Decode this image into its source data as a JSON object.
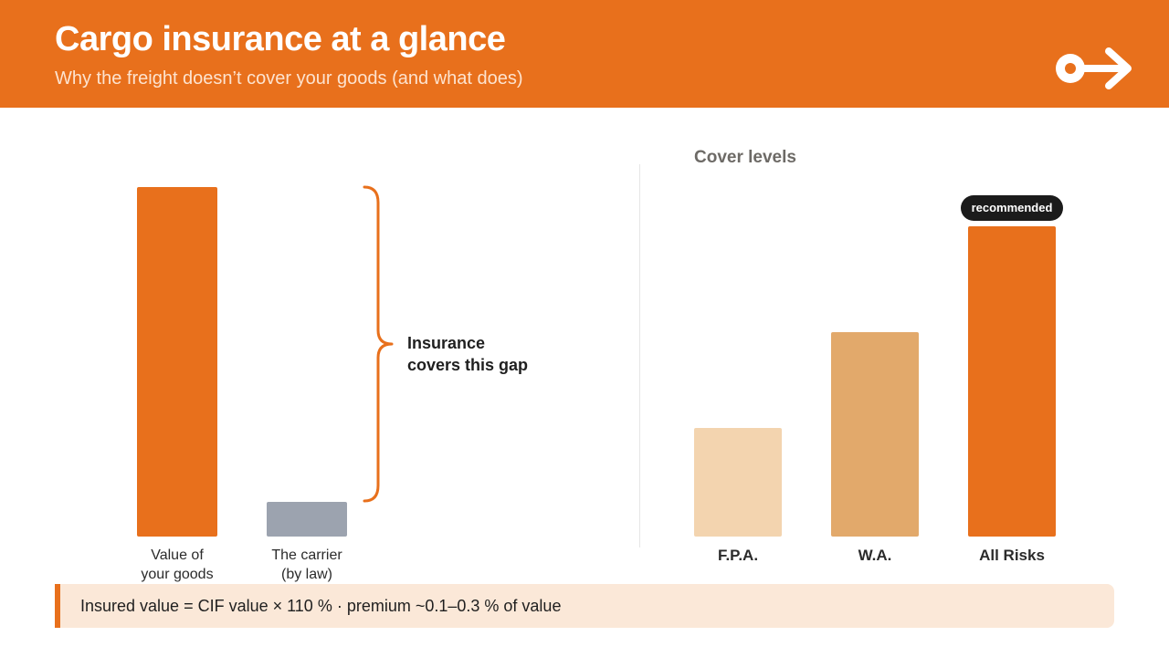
{
  "header": {
    "title": "Cargo insurance at a glance",
    "subtitle": "Why the freight doesn’t cover your goods (and what does)",
    "logo_icon": "key-arrow-icon",
    "color": "#E8701C"
  },
  "chart_data": [
    {
      "type": "bar",
      "categories": [
        "Value of\nyour goods",
        "The carrier\n(by law)"
      ],
      "values": [
        100,
        10
      ],
      "colors": [
        "#E8701C",
        "#9CA3AF"
      ],
      "annotation": "Insurance\ncovers this gap"
    },
    {
      "type": "bar",
      "title": "Cover levels",
      "categories": [
        "F.P.A.",
        "W.A.",
        "All Risks"
      ],
      "values": [
        35,
        66,
        100
      ],
      "colors": [
        "#F3D4AF",
        "#E2A96B",
        "#E8701C"
      ],
      "badge": "recommended"
    }
  ],
  "footer": {
    "text": "Insured value = CIF value × 110 % · premium ~0.1–0.3 % of value"
  }
}
